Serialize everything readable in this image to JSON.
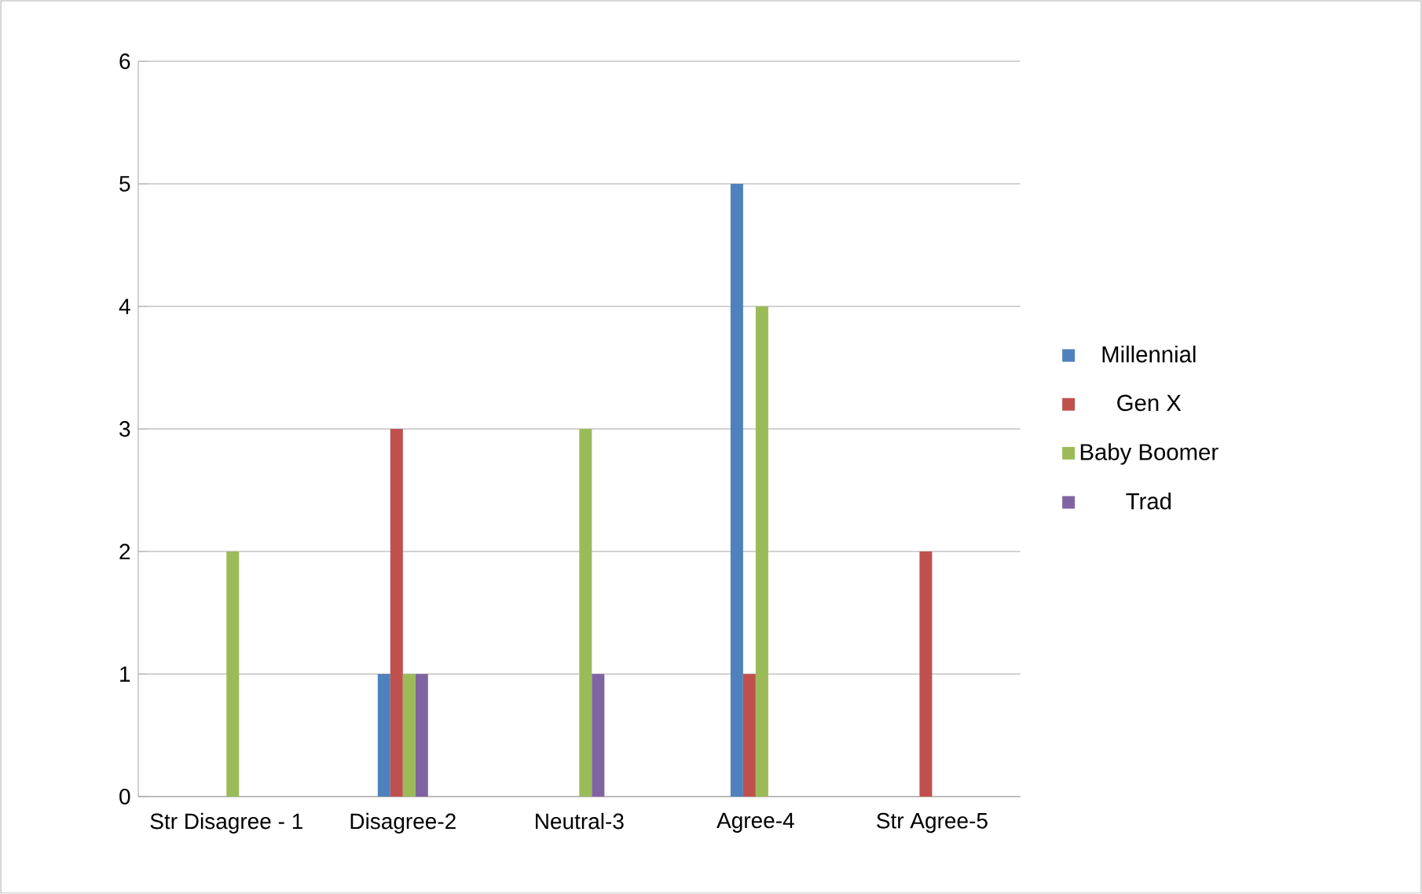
{
  "chart_data": {
    "type": "bar",
    "categories": [
      "Str Disagree - 1",
      "Disagree-2",
      "Neutral-3",
      "Agree-4",
      "Str Agree-5"
    ],
    "series": [
      {
        "name": "Millennial",
        "color": "#4f81bd",
        "values": [
          0,
          1,
          0,
          5,
          0
        ]
      },
      {
        "name": "Gen X",
        "color": "#c0504d",
        "values": [
          0,
          3,
          0,
          1,
          2
        ]
      },
      {
        "name": "Baby Boomer",
        "color": "#9bbb59",
        "values": [
          2,
          1,
          3,
          4,
          0
        ]
      },
      {
        "name": "Trad",
        "color": "#8064a2",
        "values": [
          0,
          1,
          1,
          0,
          0
        ]
      }
    ],
    "ylim": [
      0,
      6
    ],
    "yticks": [
      0,
      1,
      2,
      3,
      4,
      5,
      6
    ],
    "grid": "y",
    "legend": "right"
  }
}
